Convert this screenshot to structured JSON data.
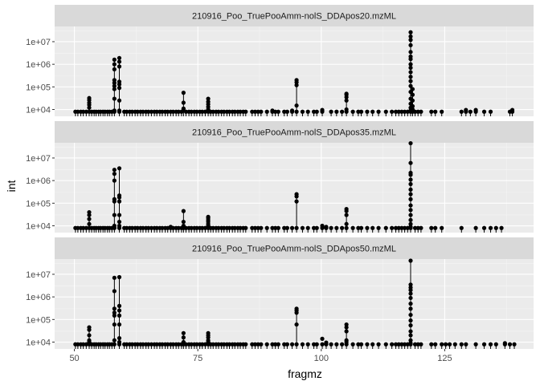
{
  "colors": {
    "panel_bg": "#ebebeb",
    "strip_bg": "#d9d9d9",
    "grid_major": "#ffffff",
    "grid_minor": "#f5f5f5",
    "ink": "#000000"
  },
  "chart_data": {
    "type": "scatter",
    "style": "lollipop (vertical segments from baseline to points, faceted)",
    "xlabel": "fragmz",
    "ylabel": "int",
    "x_scale": "linear",
    "y_scale": "log10",
    "xlim": [
      46,
      143
    ],
    "ylim": [
      5000,
      40000000
    ],
    "x_ticks": [
      50,
      75,
      100,
      125
    ],
    "y_ticks": [
      {
        "value": 10000,
        "label": "1e+04"
      },
      {
        "value": 100000,
        "label": "1e+05"
      },
      {
        "value": 1000000,
        "label": "1e+06"
      },
      {
        "value": 10000000,
        "label": "1e+07"
      }
    ],
    "grid": true,
    "baseline": 5000,
    "facets": [
      {
        "title": "210916_Poo_TruePooAmm-nolS_DDApos20.mzML",
        "peaks": [
          {
            "x": 58.1,
            "ys": [
              8000,
              9000,
              30000,
              80000,
              110000,
              150000,
              200000,
              600000,
              1000000,
              1600000
            ]
          },
          {
            "x": 59.1,
            "ys": [
              8000,
              9000,
              25000,
              90000,
              130000,
              170000,
              800000,
              1300000,
              1900000
            ]
          },
          {
            "x": 53.0,
            "ys": [
              8000,
              12000,
              16000,
              20000,
              26000,
              32000
            ]
          },
          {
            "x": 72.1,
            "ys": [
              9000,
              11000,
              20000,
              55000
            ]
          },
          {
            "x": 77.1,
            "ys": [
              8000,
              10000,
              13000,
              17000,
              22000,
              30000
            ]
          },
          {
            "x": 95.0,
            "ys": [
              8000,
              15000,
              120000,
              160000,
              200000
            ]
          },
          {
            "x": 105.1,
            "ys": [
              8000,
              10000,
              25000,
              35000,
              45000,
              50000
            ]
          },
          {
            "x": 118.1,
            "ys": [
              8000,
              9000,
              12000,
              18000,
              30000,
              60000,
              110000,
              180000,
              280000,
              450000,
              700000,
              1000000,
              1700000,
              2200000,
              3500000,
              7000000,
              12000000,
              17000000,
              26000000
            ]
          },
          {
            "x": 118.5,
            "ys": [
              8000,
              10000,
              14000,
              25000,
              45000,
              80000
            ]
          }
        ],
        "base_x": [
          50.2,
          50.7,
          51.3,
          51.8,
          52.4,
          53.5,
          54.0,
          54.4,
          54.9,
          55.3,
          55.8,
          56.2,
          56.7,
          57.1,
          57.6,
          60.1,
          60.6,
          61.2,
          61.7,
          62.3,
          62.8,
          63.4,
          63.9,
          64.5,
          65.0,
          65.6,
          66.2,
          66.7,
          67.3,
          67.8,
          68.4,
          68.9,
          69.5,
          70.0,
          70.6,
          71.1,
          71.7,
          72.6,
          73.2,
          73.7,
          74.3,
          74.8,
          75.4,
          75.9,
          76.5,
          77.6,
          78.1,
          78.7,
          79.2,
          79.8,
          80.3,
          80.9,
          81.4,
          82.0,
          82.5,
          83.1,
          83.6,
          84.2,
          84.7,
          86.0,
          86.6,
          87.2,
          87.8,
          89.0,
          90.1,
          90.7,
          91.3,
          92.5,
          93.1,
          94.1,
          96.2,
          97.3,
          98.5,
          99.1,
          100.2,
          102.0,
          103.1,
          104.2,
          106.4,
          107.5,
          108.1,
          109.3,
          110.4,
          111.6,
          113.1,
          114.3,
          115.1,
          115.7,
          116.3,
          116.9,
          117.5,
          119.0,
          119.6,
          120.2,
          122.3,
          123.1,
          124.4,
          128.4,
          129.3,
          130.2,
          131.3,
          133.0,
          134.3,
          138.2,
          138.7
        ],
        "base_y": 8000,
        "extra_points": [
          {
            "x": 129.3,
            "y": 9500
          },
          {
            "x": 131.3,
            "y": 9500
          },
          {
            "x": 138.7,
            "y": 9500
          },
          {
            "x": 100.2,
            "y": 9500
          },
          {
            "x": 94.1,
            "y": 9000
          },
          {
            "x": 90.1,
            "y": 9000
          }
        ]
      },
      {
        "title": "210916_Poo_TruePooAmm-nolS_DDApos35.mzML",
        "peaks": [
          {
            "x": 58.1,
            "ys": [
              8000,
              10000,
              30000,
              120000,
              150000,
              1000000,
              2000000,
              3000000
            ]
          },
          {
            "x": 59.1,
            "ys": [
              8000,
              10000,
              15000,
              30000,
              120000,
              180000,
              220000,
              3500000
            ]
          },
          {
            "x": 53.0,
            "ys": [
              8000,
              12000,
              20000,
              30000,
              40000
            ]
          },
          {
            "x": 72.1,
            "ys": [
              8000,
              10000,
              15000,
              45000
            ]
          },
          {
            "x": 77.1,
            "ys": [
              8000,
              10000,
              12000,
              15000,
              18000,
              22000,
              25000
            ]
          },
          {
            "x": 95.0,
            "ys": [
              8000,
              120000,
              200000,
              250000
            ]
          },
          {
            "x": 105.1,
            "ys": [
              8000,
              12000,
              30000,
              45000,
              55000
            ]
          },
          {
            "x": 118.1,
            "ys": [
              8000,
              9000,
              12000,
              18000,
              30000,
              50000,
              80000,
              150000,
              250000,
              400000,
              700000,
              1100000,
              1800000,
              2200000,
              6000000,
              45000000
            ]
          }
        ],
        "base_x": [
          50.2,
          50.7,
          51.3,
          51.8,
          52.4,
          53.5,
          54.0,
          54.4,
          54.9,
          55.3,
          55.8,
          56.2,
          56.7,
          57.1,
          57.6,
          60.1,
          60.6,
          61.2,
          61.7,
          62.3,
          62.8,
          63.4,
          63.9,
          64.5,
          65.0,
          65.6,
          66.2,
          66.7,
          67.3,
          67.8,
          68.4,
          68.9,
          69.5,
          70.0,
          70.6,
          71.1,
          71.7,
          72.6,
          73.2,
          73.7,
          74.3,
          74.8,
          75.4,
          75.9,
          76.5,
          77.6,
          78.1,
          78.7,
          79.2,
          79.8,
          80.3,
          80.9,
          81.4,
          82.0,
          82.5,
          83.1,
          83.6,
          84.2,
          84.7,
          86.0,
          86.6,
          87.2,
          87.8,
          89.0,
          90.1,
          90.7,
          91.3,
          92.5,
          93.1,
          94.1,
          96.2,
          97.3,
          98.5,
          99.1,
          100.2,
          101.0,
          102.0,
          103.1,
          104.2,
          106.4,
          107.5,
          108.1,
          109.3,
          110.4,
          111.6,
          113.1,
          114.3,
          115.1,
          115.7,
          116.3,
          116.9,
          117.5,
          119.0,
          119.6,
          120.2,
          122.3,
          123.1,
          124.4,
          128.4,
          131.3,
          133.0,
          134.3,
          135.4,
          136.5
        ],
        "base_y": 8000,
        "extra_points": [
          {
            "x": 100.2,
            "y": 10000
          },
          {
            "x": 101.0,
            "y": 9000
          },
          {
            "x": 69.5,
            "y": 9000
          }
        ]
      },
      {
        "title": "210916_Poo_TruePooAmm-nolS_DDApos50.mzML",
        "peaks": [
          {
            "x": 58.1,
            "ys": [
              8000,
              12000,
              60000,
              150000,
              200000,
              300000,
              1800000,
              7000000
            ]
          },
          {
            "x": 59.1,
            "ys": [
              8000,
              10000,
              15000,
              60000,
              150000,
              250000,
              400000,
              7500000
            ]
          },
          {
            "x": 53.0,
            "ys": [
              8000,
              10000,
              12000,
              20000,
              35000,
              45000
            ]
          },
          {
            "x": 72.1,
            "ys": [
              8000,
              10000,
              16000,
              25000
            ]
          },
          {
            "x": 77.1,
            "ys": [
              8000,
              10000,
              12000,
              16000,
              20000,
              25000
            ]
          },
          {
            "x": 95.0,
            "ys": [
              8000,
              60000,
              200000,
              250000,
              300000
            ]
          },
          {
            "x": 105.1,
            "ys": [
              8000,
              10000,
              12000,
              30000,
              45000,
              60000
            ]
          },
          {
            "x": 118.1,
            "ys": [
              8000,
              9000,
              12000,
              20000,
              30000,
              55000,
              90000,
              160000,
              300000,
              500000,
              900000,
              1400000,
              2000000,
              2600000,
              3500000,
              40000000
            ]
          }
        ],
        "base_x": [
          50.2,
          50.7,
          51.3,
          51.8,
          52.4,
          53.5,
          54.0,
          54.4,
          54.9,
          55.3,
          55.8,
          56.2,
          56.7,
          57.1,
          57.6,
          60.1,
          60.6,
          61.2,
          61.7,
          62.3,
          62.8,
          63.4,
          63.9,
          64.5,
          65.0,
          65.6,
          66.2,
          66.7,
          67.3,
          67.8,
          68.4,
          68.9,
          69.5,
          70.0,
          70.6,
          71.1,
          71.7,
          72.6,
          73.2,
          73.7,
          74.3,
          74.8,
          75.4,
          75.9,
          76.5,
          77.6,
          78.1,
          78.7,
          79.2,
          79.8,
          80.3,
          80.9,
          81.4,
          82.0,
          82.5,
          83.1,
          83.6,
          84.2,
          84.7,
          86.0,
          86.6,
          87.2,
          87.8,
          89.0,
          90.1,
          90.7,
          91.3,
          92.5,
          93.1,
          94.1,
          96.2,
          97.3,
          98.5,
          99.1,
          100.2,
          101.0,
          102.0,
          103.1,
          104.2,
          106.4,
          107.5,
          108.1,
          109.3,
          110.4,
          111.6,
          113.1,
          114.3,
          115.1,
          115.7,
          116.3,
          116.9,
          117.5,
          119.0,
          119.6,
          120.2,
          122.3,
          123.1,
          124.4,
          125.2,
          126.0,
          127.1,
          128.4,
          129.3,
          131.3,
          133.0,
          134.3,
          135.4,
          137.2,
          138.2,
          139.1
        ],
        "base_y": 8000,
        "extra_points": [
          {
            "x": 100.2,
            "y": 14000
          },
          {
            "x": 101.0,
            "y": 9500
          },
          {
            "x": 137.2,
            "y": 9000
          }
        ]
      }
    ]
  }
}
